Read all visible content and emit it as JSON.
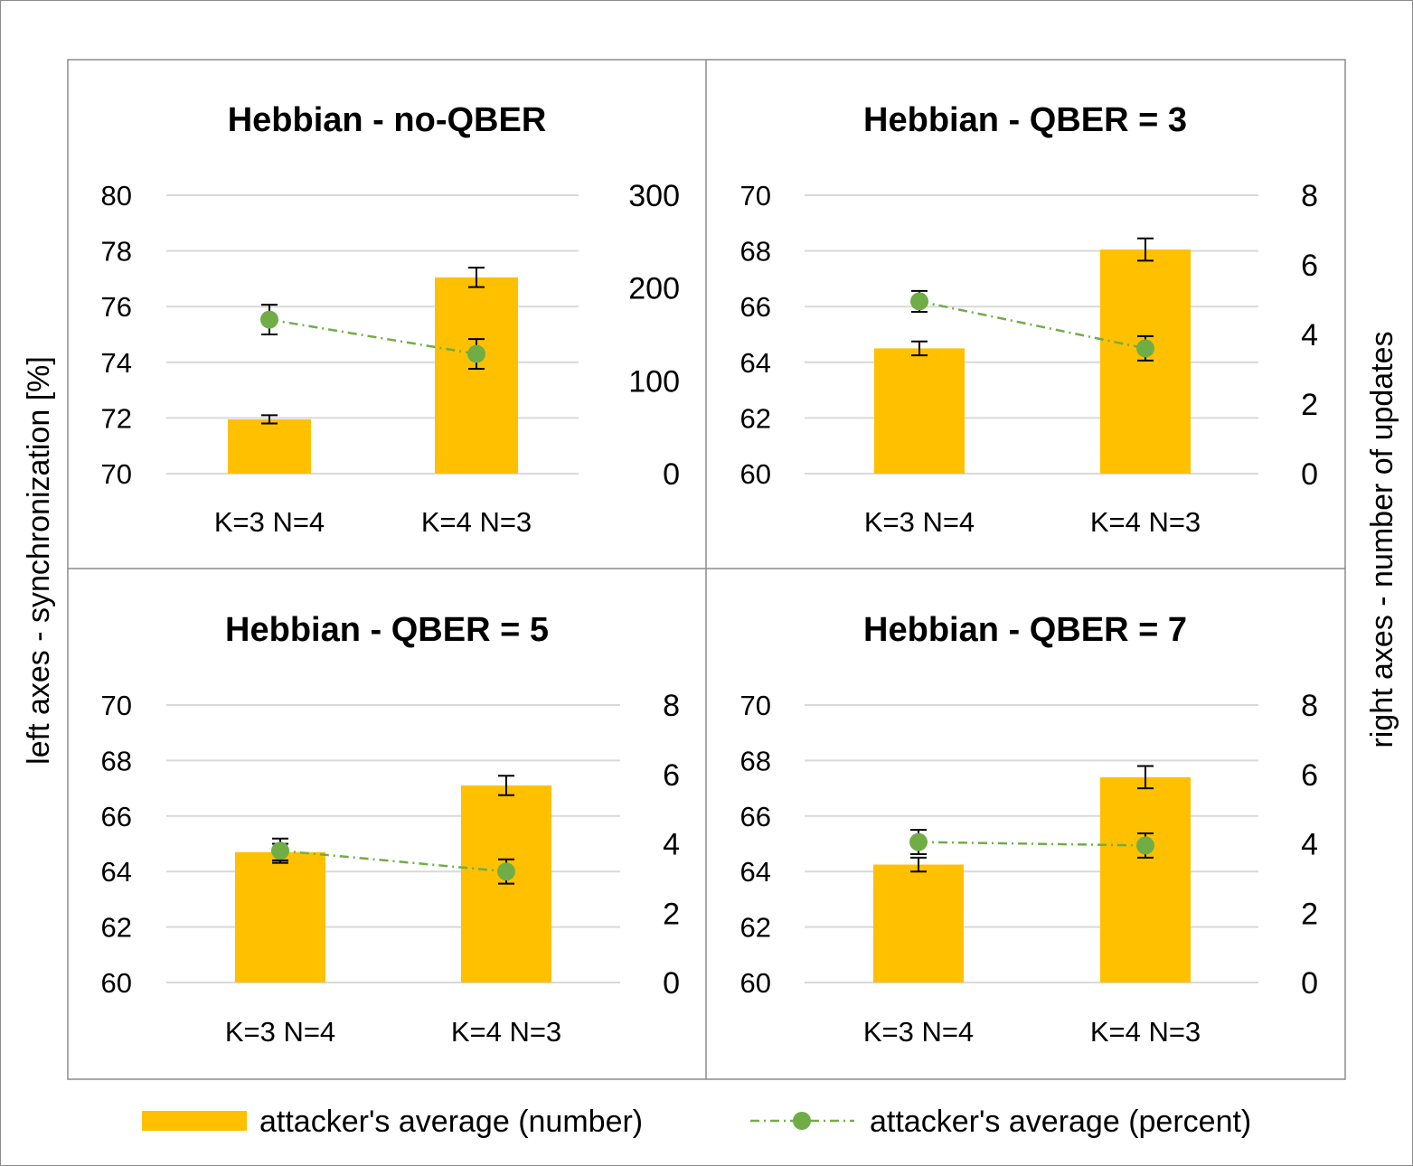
{
  "left_axis_label": "left axes - synchronization [%]",
  "right_axis_label": "right axes - number of updates",
  "legend": {
    "bar_label": "attacker's average (number)",
    "line_label": "attacker's average (percent)"
  },
  "colors": {
    "bar": "#FFC000",
    "line": "#70AD47",
    "grid": "#d9d9d9",
    "border": "#8c8c8c"
  },
  "chart_data": [
    {
      "type": "bar",
      "title": "Hebbian - no-QBER",
      "categories": [
        "K=3 N=4",
        "K=4 N=3"
      ],
      "left_axis": {
        "min": 70,
        "max": 80,
        "ticks": [
          "80",
          "78",
          "76",
          "74",
          "72",
          "70"
        ]
      },
      "right_axis": {
        "min": 0,
        "max": 300,
        "ticks": [
          "300",
          "200",
          "100",
          "0"
        ]
      },
      "series": [
        {
          "name": "attacker's average (number)",
          "kind": "bar",
          "axis": "left",
          "values": [
            71.95,
            77.05
          ],
          "errors": [
            0.15,
            0.35
          ]
        },
        {
          "name": "attacker's average (percent)",
          "kind": "line",
          "axis": "right",
          "values": [
            166,
            129
          ],
          "errors": [
            16,
            16
          ]
        }
      ]
    },
    {
      "type": "bar",
      "title": "Hebbian - QBER = 3",
      "categories": [
        "K=3 N=4",
        "K=4 N=3"
      ],
      "left_axis": {
        "min": 60,
        "max": 70,
        "ticks": [
          "70",
          "68",
          "66",
          "64",
          "62",
          "60"
        ]
      },
      "right_axis": {
        "min": 0,
        "max": 8,
        "ticks": [
          "8",
          "6",
          "4",
          "2",
          "0"
        ]
      },
      "series": [
        {
          "name": "attacker's average (number)",
          "kind": "bar",
          "axis": "left",
          "values": [
            64.5,
            68.05
          ],
          "errors": [
            0.25,
            0.4
          ]
        },
        {
          "name": "attacker's average (percent)",
          "kind": "line",
          "axis": "right",
          "values": [
            4.95,
            3.6
          ],
          "errors": [
            0.3,
            0.35
          ]
        }
      ]
    },
    {
      "type": "bar",
      "title": "Hebbian - QBER = 5",
      "categories": [
        "K=3 N=4",
        "K=4 N=3"
      ],
      "left_axis": {
        "min": 60,
        "max": 70,
        "ticks": [
          "70",
          "68",
          "66",
          "64",
          "62",
          "60"
        ]
      },
      "right_axis": {
        "min": 0,
        "max": 8,
        "ticks": [
          "8",
          "6",
          "4",
          "2",
          "0"
        ]
      },
      "series": [
        {
          "name": "attacker's average (number)",
          "kind": "bar",
          "axis": "left",
          "values": [
            64.7,
            67.1
          ],
          "errors": [
            0.3,
            0.35
          ]
        },
        {
          "name": "attacker's average (percent)",
          "kind": "line",
          "axis": "right",
          "values": [
            3.8,
            3.2
          ],
          "errors": [
            0.35,
            0.35
          ]
        }
      ]
    },
    {
      "type": "bar",
      "title": "Hebbian - QBER = 7",
      "categories": [
        "K=3 N=4",
        "K=4 N=3"
      ],
      "left_axis": {
        "min": 60,
        "max": 70,
        "ticks": [
          "70",
          "68",
          "66",
          "64",
          "62",
          "60"
        ]
      },
      "right_axis": {
        "min": 0,
        "max": 8,
        "ticks": [
          "8",
          "6",
          "4",
          "2",
          "0"
        ]
      },
      "series": [
        {
          "name": "attacker's average (number)",
          "kind": "bar",
          "axis": "left",
          "values": [
            64.25,
            67.4
          ],
          "errors": [
            0.25,
            0.4
          ]
        },
        {
          "name": "attacker's average (percent)",
          "kind": "line",
          "axis": "right",
          "values": [
            4.05,
            3.95
          ],
          "errors": [
            0.35,
            0.35
          ]
        }
      ]
    }
  ]
}
